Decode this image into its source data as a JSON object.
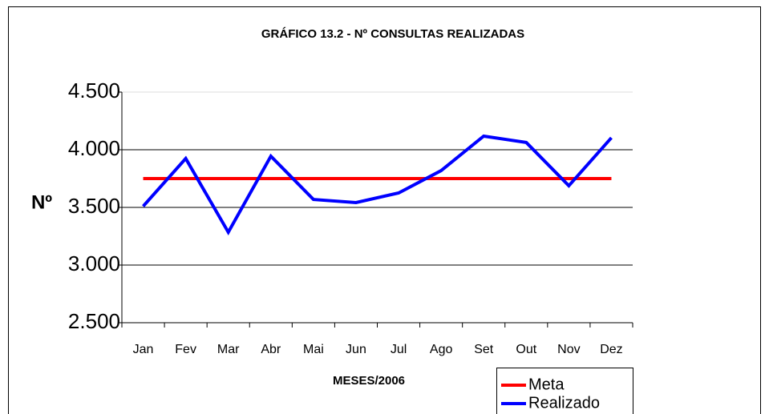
{
  "chart_data": {
    "type": "line",
    "title": "GRÁFICO 13.2 - Nº CONSULTAS REALIZADAS",
    "x_label": "MESES/2006",
    "y_label": "Nº",
    "categories": [
      "Jan",
      "Fev",
      "Mar",
      "Abr",
      "Mai",
      "Jun",
      "Jul",
      "Ago",
      "Set",
      "Out",
      "Nov",
      "Dez"
    ],
    "series": [
      {
        "name": "Meta",
        "color": "#ff0000",
        "values": [
          3750,
          3750,
          3750,
          3750,
          3750,
          3750,
          3750,
          3750,
          3750,
          3750,
          3750,
          3750
        ]
      },
      {
        "name": "Realizado",
        "color": "#0000ff",
        "values": [
          3510,
          3924,
          3285,
          3944,
          3569,
          3542,
          3625,
          3819,
          4118,
          4063,
          3688,
          4104
        ]
      }
    ],
    "ylim": [
      2500,
      4500
    ],
    "yticks": [
      {
        "value": 2500,
        "label": "2.500"
      },
      {
        "value": 3000,
        "label": "3.000"
      },
      {
        "value": 3500,
        "label": "3.500"
      },
      {
        "value": 4000,
        "label": "4.000"
      },
      {
        "value": 4500,
        "label": "4.500"
      }
    ],
    "grid": true,
    "legend": "bottom-right"
  }
}
